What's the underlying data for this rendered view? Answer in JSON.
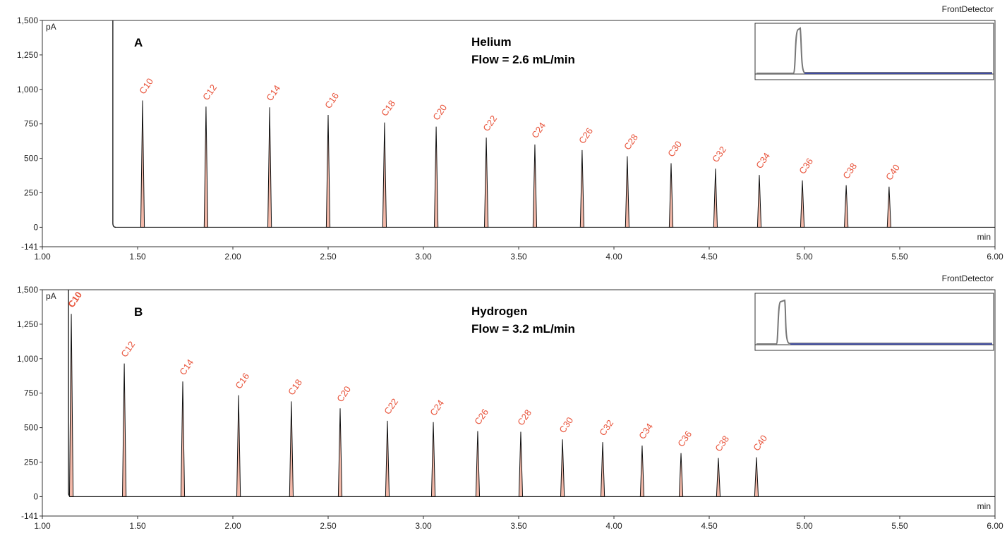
{
  "chart_data": [
    {
      "type": "line",
      "panel_label": "A",
      "annotation": [
        "Helium",
        "Flow = 2.6 mL/min"
      ],
      "detector": "FrontDetector",
      "y_unit": "pA",
      "x_unit": "min",
      "xlim": [
        1,
        6
      ],
      "ylim": [
        -141,
        1500
      ],
      "xticks": [
        {
          "value": 1,
          "label": "1.00"
        },
        {
          "value": 1.5,
          "label": "1.50"
        },
        {
          "value": 2,
          "label": "2.00"
        },
        {
          "value": 2.5,
          "label": "2.50"
        },
        {
          "value": 3,
          "label": "3.00"
        },
        {
          "value": 3.5,
          "label": "3.50"
        },
        {
          "value": 4,
          "label": "4.00"
        },
        {
          "value": 4.5,
          "label": "4.50"
        },
        {
          "value": 5,
          "label": "5.00"
        },
        {
          "value": 5.5,
          "label": "5.50"
        },
        {
          "value": 6,
          "label": "6.00"
        }
      ],
      "yticks": [
        -141,
        0,
        250,
        500,
        750,
        {
          "value": 1000,
          "label": "1,000"
        },
        {
          "value": 1250,
          "label": "1,250"
        },
        {
          "value": 1500,
          "label": "1,500"
        }
      ],
      "solvent_x": 1.37,
      "solvent_value": 3000,
      "peak_labels": [
        "C10",
        "C12",
        "C14",
        "C16",
        "C18",
        "C20",
        "C22",
        "C24",
        "C26",
        "C28",
        "C30",
        "C32",
        "C34",
        "C36",
        "C38",
        "C40"
      ],
      "x": [
        1.526,
        1.859,
        2.193,
        2.5,
        2.796,
        3.067,
        3.33,
        3.585,
        3.833,
        4.07,
        4.3,
        4.533,
        4.763,
        4.989,
        5.219,
        5.444
      ],
      "values": [
        920,
        875,
        870,
        815,
        760,
        730,
        650,
        600,
        560,
        515,
        465,
        425,
        380,
        340,
        305,
        295
      ],
      "bold_peaks": []
    },
    {
      "type": "line",
      "panel_label": "B",
      "annotation": [
        "Hydrogen",
        "Flow = 3.2 mL/min"
      ],
      "detector": "FrontDetector",
      "y_unit": "pA",
      "x_unit": "min",
      "xlim": [
        1,
        6
      ],
      "ylim": [
        -141,
        1500
      ],
      "xticks": [
        {
          "value": 1,
          "label": "1.00"
        },
        {
          "value": 1.5,
          "label": "1.50"
        },
        {
          "value": 2,
          "label": "2.00"
        },
        {
          "value": 2.5,
          "label": "2.50"
        },
        {
          "value": 3,
          "label": "3.00"
        },
        {
          "value": 3.5,
          "label": "3.50"
        },
        {
          "value": 4,
          "label": "4.00"
        },
        {
          "value": 4.5,
          "label": "4.50"
        },
        {
          "value": 5,
          "label": "5.00"
        },
        {
          "value": 5.5,
          "label": "5.50"
        },
        {
          "value": 6,
          "label": "6.00"
        }
      ],
      "yticks": [
        -141,
        0,
        250,
        500,
        750,
        {
          "value": 1000,
          "label": "1,000"
        },
        {
          "value": 1250,
          "label": "1,250"
        },
        {
          "value": 1500,
          "label": "1,500"
        }
      ],
      "solvent_x": 1.137,
      "solvent_value": 3000,
      "peak_labels": [
        "C10",
        "C12",
        "C14",
        "C16",
        "C18",
        "C20",
        "C22",
        "C24",
        "C26",
        "C28",
        "C30",
        "C32",
        "C34",
        "C36",
        "C38",
        "C40"
      ],
      "x": [
        1.152,
        1.43,
        1.737,
        2.03,
        2.307,
        2.563,
        2.811,
        3.052,
        3.285,
        3.511,
        3.73,
        3.941,
        4.148,
        4.352,
        4.548,
        4.748
      ],
      "values": [
        1325,
        965,
        835,
        735,
        690,
        640,
        550,
        540,
        475,
        470,
        415,
        395,
        370,
        315,
        280,
        285
      ],
      "bold_peaks": [
        0
      ]
    }
  ]
}
